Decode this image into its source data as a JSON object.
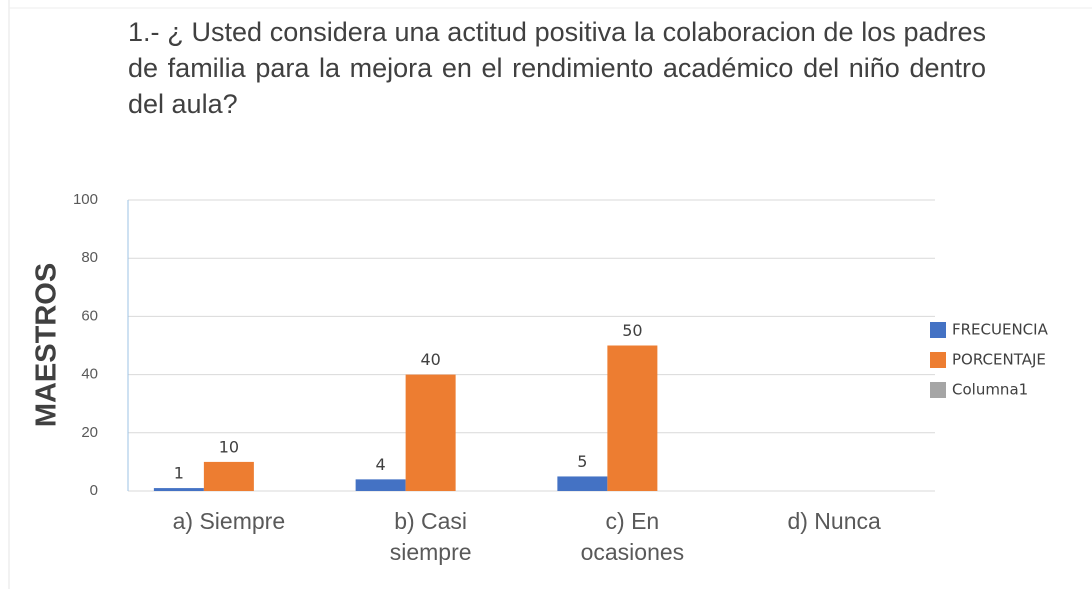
{
  "chart_data": {
    "type": "bar",
    "title": "1.- ¿ Usted considera una actitud positiva la colaboracion de los padres de familia para la mejora en el rendimiento académico del niño dentro del aula?",
    "y_label": "MAESTROS",
    "categories": [
      "a) Siempre",
      "b) Casi siempre",
      "c) En ocasiones",
      "d) Nunca"
    ],
    "series": [
      {
        "name": "FRECUENCIA",
        "color": "#4472c4",
        "values": [
          1,
          4,
          5,
          null
        ]
      },
      {
        "name": "PORCENTAJE",
        "color": "#ed7d31",
        "values": [
          10,
          40,
          50,
          null
        ]
      },
      {
        "name": "Columna1",
        "color": "#a5a5a5",
        "values": [
          null,
          null,
          null,
          null
        ]
      }
    ],
    "ylim": [
      0,
      100
    ],
    "yticks": [
      0,
      20,
      40,
      60,
      80,
      100
    ],
    "grid": true,
    "legend": "right"
  }
}
